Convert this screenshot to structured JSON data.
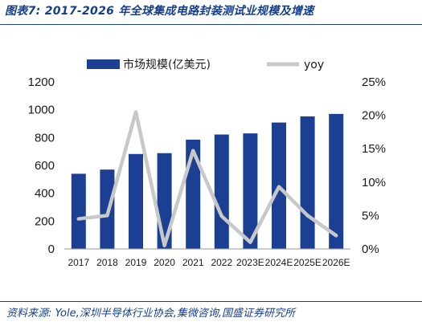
{
  "header": {
    "title": "图表7:  2017-2026 年全球集成电路封装测试业规模及增速"
  },
  "footer": {
    "source": "资料来源: Yole,深圳半导体行业协会,集微咨询,国盛证券研究所"
  },
  "chart_data": {
    "type": "bar",
    "categories": [
      "2017",
      "2018",
      "2019",
      "2020",
      "2021",
      "2022",
      "2023E",
      "2024E",
      "2025E",
      "2026E"
    ],
    "series": [
      {
        "name": "市场规模(亿美元)",
        "type": "bar",
        "axis": "left",
        "color": "#1b3f92",
        "values": [
          540,
          570,
          682,
          688,
          785,
          822,
          830,
          908,
          952,
          970
        ]
      },
      {
        "name": "yoy",
        "type": "line",
        "axis": "right",
        "color": "#c8c8c8",
        "values": [
          4.5,
          5.0,
          20.5,
          0.5,
          14.7,
          4.9,
          1.0,
          9.3,
          5.0,
          2.0
        ]
      }
    ],
    "y_left": {
      "ylim": [
        0,
        1200
      ],
      "ticks": [
        "0",
        "200",
        "400",
        "600",
        "800",
        "1000",
        "1200"
      ]
    },
    "y_right": {
      "ylim": [
        0,
        25
      ],
      "ticks": [
        "0%",
        "5%",
        "10%",
        "15%",
        "20%",
        "25%"
      ]
    },
    "grid": false,
    "legend": "top"
  }
}
